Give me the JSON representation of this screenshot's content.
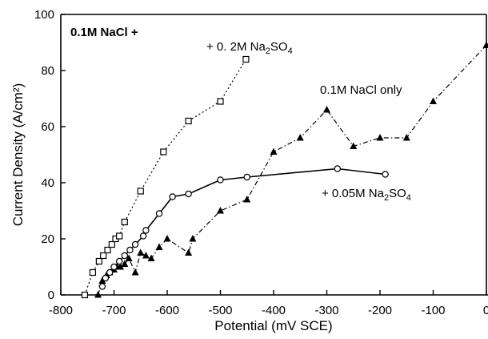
{
  "chart_data": {
    "type": "line",
    "title": "0.1M NaCl +",
    "xlabel": "Potential (mV SCE)",
    "ylabel": "Current Density (A/cm²)",
    "xlim": [
      -800,
      0
    ],
    "ylim": [
      0,
      100
    ],
    "x_ticks": [
      -800,
      -700,
      -600,
      -500,
      -400,
      -300,
      -200,
      -100,
      0
    ],
    "y_ticks": [
      0,
      20,
      40,
      60,
      80,
      100
    ],
    "grid": false,
    "series": [
      {
        "name": "+ 0. 2M Na₂SO₄",
        "marker": "open-square",
        "line_style": "dotted",
        "x": [
          -755,
          -740,
          -728,
          -720,
          -712,
          -704,
          -697,
          -690,
          -680,
          -650,
          -607,
          -560,
          -500,
          -452
        ],
        "y": [
          0,
          8,
          12,
          14,
          16,
          18,
          20,
          21,
          26,
          37,
          51,
          62,
          69,
          84
        ]
      },
      {
        "name": "0.1M NaCl only",
        "marker": "filled-triangle",
        "line_style": "dash-dot",
        "x": [
          -730,
          -722,
          -714,
          -708,
          -700,
          -694,
          -688,
          -680,
          -672,
          -660,
          -650,
          -640,
          -630,
          -615,
          -600,
          -560,
          -552,
          -500,
          -450,
          -400,
          -350,
          -300,
          -250,
          -200,
          -150,
          -100,
          0
        ],
        "y": [
          0,
          5,
          7,
          8,
          9,
          10,
          10,
          11,
          13,
          8,
          15,
          14,
          13,
          17,
          20,
          15,
          20,
          30,
          34,
          51,
          56,
          66,
          53,
          56,
          56,
          69,
          89
        ]
      },
      {
        "name": "+ 0.05M Na₂SO₄",
        "marker": "open-circle",
        "line_style": "solid",
        "x": [
          -722,
          -716,
          -708,
          -700,
          -690,
          -680,
          -670,
          -660,
          -645,
          -640,
          -615,
          -590,
          -560,
          -500,
          -450,
          -280,
          -190
        ],
        "y": [
          3,
          6,
          8,
          10,
          12,
          14,
          16,
          18,
          21,
          23,
          29,
          35,
          36,
          41,
          42,
          45,
          43
        ]
      }
    ],
    "annotations": [
      {
        "text": "0.1M NaCl +",
        "bold": true
      },
      {
        "text": "+ 0. 2M Na",
        "subscript": "2",
        "suffix": "SO",
        "subscript2": "4"
      },
      {
        "text": "0.1M NaCl only"
      },
      {
        "text": "+ 0.05M Na",
        "subscript": "2",
        "suffix": "SO",
        "subscript2": "4"
      }
    ]
  }
}
